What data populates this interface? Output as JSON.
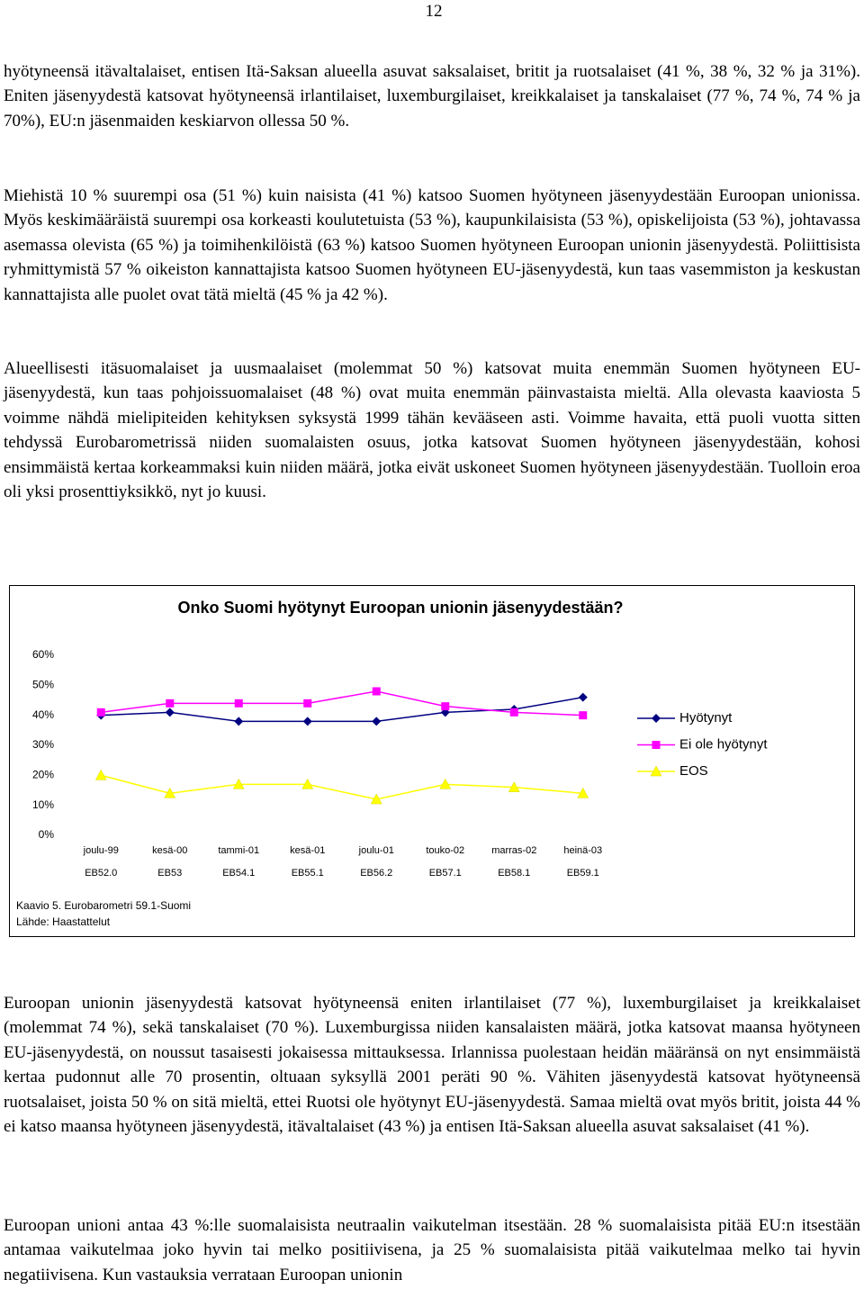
{
  "page_number": "12",
  "paragraphs": [
    "hyötyneensä itävaltalaiset, entisen Itä-Saksan alueella asuvat saksalaiset, britit ja ruotsalaiset (41 %, 38 %, 32 % ja 31%). Eniten jäsenyydestä katsovat hyötyneensä irlantilaiset, luxemburgilaiset, kreikkalaiset ja tanskalaiset (77 %, 74 %, 74 % ja 70%), EU:n jäsenmaiden keskiarvon ollessa 50 %.",
    "Miehistä 10 % suurempi osa (51 %) kuin naisista (41 %) katsoo Suomen hyötyneen jäsenyydestään Euroopan unionissa. Myös keskimääräistä suurempi osa korkeasti koulutetuista (53 %), kaupunkilaisista (53 %), opiskelijoista (53 %), johtavassa asemassa olevista (65 %) ja toimihenkilöistä (63 %) katsoo Suomen hyötyneen Euroopan unionin jäsenyydestä. Poliittisista ryhmittymistä 57 % oikeiston kannattajista katsoo Suomen hyötyneen EU-jäsenyydestä, kun taas vasemmiston ja keskustan kannattajista alle puolet ovat tätä mieltä (45 % ja 42 %).",
    "Alueellisesti itäsuomalaiset ja uusmaalaiset (molemmat 50 %) katsovat muita enemmän Suomen hyötyneen EU-jäsenyydestä, kun taas pohjoissuomalaiset (48 %) ovat muita enemmän päinvastaista mieltä. Alla olevasta kaaviosta 5 voimme nähdä mielipiteiden kehityksen syksystä 1999 tähän kevääseen asti. Voimme havaita, että puoli vuotta sitten tehdyssä Eurobarometrissä niiden suomalaisten osuus, jotka katsovat Suomen hyötyneen jäsenyydestään, kohosi ensimmäistä kertaa korkeammaksi kuin niiden määrä, jotka eivät uskoneet Suomen hyötyneen jäsenyydestään. Tuolloin eroa oli yksi prosenttiyksikkö, nyt jo kuusi.",
    "Euroopan unionin jäsenyydestä katsovat hyötyneensä eniten irlantilaiset (77 %), luxemburgilaiset ja kreikkalaiset (molemmat 74 %), sekä tanskalaiset (70 %). Luxemburgissa niiden kansalaisten määrä, jotka katsovat maansa hyötyneen EU-jäsenyydestä, on noussut tasaisesti jokaisessa mittauksessa. Irlannissa puolestaan heidän määränsä on nyt ensimmäistä kertaa pudonnut alle 70 prosentin, oltuaan syksyllä 2001 peräti 90 %. Vähiten jäsenyydestä katsovat hyötyneensä ruotsalaiset, joista 50 % on sitä mieltä, ettei Ruotsi ole hyötynyt EU-jäsenyydestä. Samaa mieltä ovat myös britit, joista 44 % ei katso maansa hyötyneen jäsenyydestä, itävaltalaiset (43 %) ja entisen Itä-Saksan alueella asuvat saksalaiset (41 %).",
    "Euroopan unioni antaa 43 %:lle suomalaisista neutraalin vaikutelman itsestään. 28 % suomalaisista pitää EU:n itsestään antamaa vaikutelmaa joko hyvin tai melko positiivisena, ja 25 % suomalaisista pitää vaikutelmaa melko tai hyvin negatiivisena. Kun vastauksia verrataan Euroopan unionin"
  ],
  "chart": {
    "type": "line",
    "title": "Onko Suomi hyötynyt Euroopan unionin jäsenyydestään?",
    "categories": [
      "joulu-99",
      "kesä-00",
      "tammi-01",
      "kesä-01",
      "joulu-01",
      "touko-02",
      "marras-02",
      "heinä-03"
    ],
    "category_codes": [
      "EB52.0",
      "EB53",
      "EB54.1",
      "EB55.1",
      "EB56.2",
      "EB57.1",
      "EB58.1",
      "EB59.1"
    ],
    "ylim": [
      0,
      60
    ],
    "yticks": [
      {
        "value": 0,
        "label": "0%"
      },
      {
        "value": 10,
        "label": "10%"
      },
      {
        "value": 20,
        "label": "20%"
      },
      {
        "value": 30,
        "label": "30%"
      },
      {
        "value": 40,
        "label": "40%"
      },
      {
        "value": 50,
        "label": "50%"
      },
      {
        "value": 60,
        "label": "60%"
      }
    ],
    "series": [
      {
        "name": "Hyötynyt",
        "color": "#000080",
        "marker": "diamond",
        "values": [
          40,
          41,
          38,
          38,
          38,
          41,
          42,
          46
        ]
      },
      {
        "name": "Ei ole hyötynyt",
        "color": "#ff00ff",
        "marker": "square",
        "values": [
          41,
          44,
          44,
          44,
          48,
          43,
          41,
          40
        ]
      },
      {
        "name": "EOS",
        "color": "#ffff00",
        "marker": "triangle",
        "values": [
          20,
          14,
          17,
          17,
          12,
          17,
          16,
          14
        ]
      }
    ],
    "caption": [
      "Kaavio 5. Eurobarometri 59.1-Suomi",
      "Lähde: Haastattelut"
    ]
  }
}
